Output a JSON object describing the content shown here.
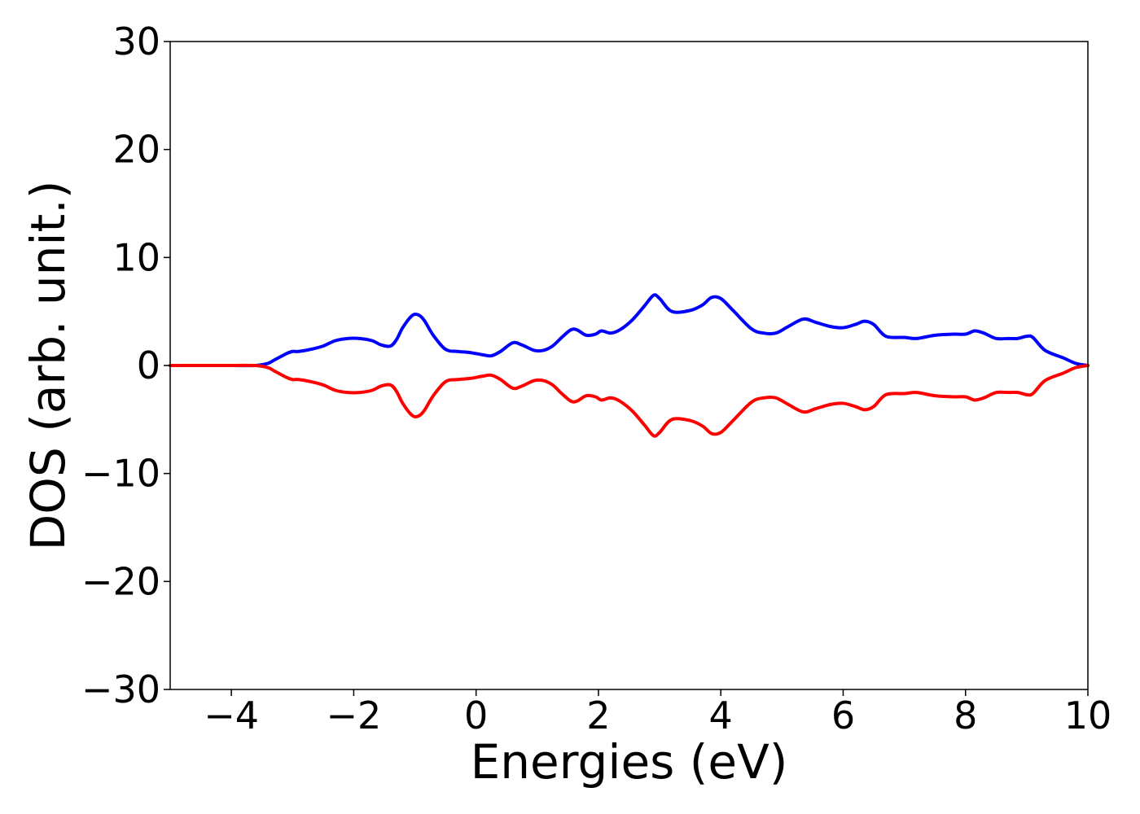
{
  "chart_data": {
    "type": "line",
    "title": "",
    "xlabel": "Energies (eV)",
    "ylabel": "DOS (arb. unit.)",
    "xlim": [
      -5,
      10
    ],
    "ylim": [
      -30,
      30
    ],
    "grid": false,
    "x_ticks": [
      {
        "value": -4,
        "label": "−4"
      },
      {
        "value": -2,
        "label": "−2"
      },
      {
        "value": 0,
        "label": "0"
      },
      {
        "value": 2,
        "label": "2"
      },
      {
        "value": 4,
        "label": "4"
      },
      {
        "value": 6,
        "label": "6"
      },
      {
        "value": 8,
        "label": "8"
      },
      {
        "value": 10,
        "label": "10"
      }
    ],
    "y_ticks": [
      {
        "value": -30,
        "label": "−30"
      },
      {
        "value": -20,
        "label": "−20"
      },
      {
        "value": -10,
        "label": "−10"
      },
      {
        "value": 0,
        "label": "0"
      },
      {
        "value": 10,
        "label": "10"
      },
      {
        "value": 20,
        "label": "20"
      },
      {
        "value": 30,
        "label": "30"
      }
    ],
    "series": [
      {
        "color": "#0000ff",
        "x": [
          -5.0,
          -4.5,
          -4.0,
          -3.6,
          -3.4,
          -3.3,
          -3.1,
          -3.0,
          -2.9,
          -2.7,
          -2.5,
          -2.3,
          -2.1,
          -1.9,
          -1.7,
          -1.55,
          -1.4,
          -1.3,
          -1.2,
          -1.05,
          -0.95,
          -0.85,
          -0.7,
          -0.5,
          -0.3,
          -0.1,
          0.1,
          0.25,
          0.4,
          0.6,
          0.75,
          0.95,
          1.1,
          1.25,
          1.4,
          1.55,
          1.65,
          1.8,
          1.95,
          2.05,
          2.2,
          2.35,
          2.55,
          2.75,
          2.9,
          3.0,
          3.2,
          3.5,
          3.7,
          3.85,
          4.0,
          4.2,
          4.5,
          4.7,
          4.9,
          5.1,
          5.35,
          5.55,
          5.8,
          6.0,
          6.2,
          6.35,
          6.5,
          6.7,
          7.0,
          7.2,
          7.5,
          7.8,
          8.0,
          8.15,
          8.3,
          8.5,
          8.7,
          8.85,
          9.0,
          9.1,
          9.3,
          9.6,
          9.8,
          10.0
        ],
        "y": [
          0,
          0,
          0,
          0,
          0.2,
          0.5,
          1.1,
          1.3,
          1.3,
          1.5,
          1.8,
          2.3,
          2.5,
          2.5,
          2.3,
          1.9,
          1.8,
          2.4,
          3.5,
          4.6,
          4.7,
          4.2,
          2.8,
          1.5,
          1.3,
          1.2,
          1.0,
          0.9,
          1.3,
          2.1,
          1.9,
          1.4,
          1.4,
          1.8,
          2.6,
          3.3,
          3.3,
          2.8,
          2.9,
          3.2,
          3.0,
          3.3,
          4.2,
          5.5,
          6.5,
          6.2,
          5.0,
          5.1,
          5.6,
          6.3,
          6.2,
          5.1,
          3.4,
          3.0,
          3.0,
          3.6,
          4.3,
          4.0,
          3.6,
          3.5,
          3.8,
          4.1,
          3.8,
          2.7,
          2.6,
          2.5,
          2.8,
          2.9,
          2.9,
          3.2,
          3.0,
          2.5,
          2.5,
          2.5,
          2.7,
          2.6,
          1.4,
          0.7,
          0.2,
          0
        ]
      },
      {
        "color": "#ff0000",
        "x": [
          -5.0,
          -4.5,
          -4.0,
          -3.6,
          -3.4,
          -3.3,
          -3.1,
          -3.0,
          -2.9,
          -2.7,
          -2.5,
          -2.3,
          -2.1,
          -1.9,
          -1.7,
          -1.55,
          -1.4,
          -1.3,
          -1.2,
          -1.05,
          -0.95,
          -0.85,
          -0.7,
          -0.5,
          -0.3,
          -0.1,
          0.1,
          0.25,
          0.4,
          0.6,
          0.75,
          0.95,
          1.1,
          1.25,
          1.4,
          1.55,
          1.65,
          1.8,
          1.95,
          2.05,
          2.2,
          2.35,
          2.55,
          2.75,
          2.9,
          3.0,
          3.2,
          3.5,
          3.7,
          3.85,
          4.0,
          4.2,
          4.5,
          4.7,
          4.9,
          5.1,
          5.35,
          5.55,
          5.8,
          6.0,
          6.2,
          6.35,
          6.5,
          6.7,
          7.0,
          7.2,
          7.5,
          7.8,
          8.0,
          8.15,
          8.3,
          8.5,
          8.7,
          8.85,
          9.0,
          9.1,
          9.3,
          9.6,
          9.8,
          10.0
        ],
        "y": [
          0,
          0,
          0,
          0,
          -0.2,
          -0.5,
          -1.1,
          -1.3,
          -1.3,
          -1.5,
          -1.8,
          -2.3,
          -2.5,
          -2.5,
          -2.3,
          -1.9,
          -1.8,
          -2.4,
          -3.5,
          -4.6,
          -4.7,
          -4.2,
          -2.8,
          -1.5,
          -1.3,
          -1.2,
          -1.0,
          -0.9,
          -1.3,
          -2.1,
          -1.9,
          -1.4,
          -1.4,
          -1.8,
          -2.6,
          -3.3,
          -3.3,
          -2.8,
          -2.9,
          -3.2,
          -3.0,
          -3.3,
          -4.2,
          -5.5,
          -6.5,
          -6.2,
          -5.0,
          -5.1,
          -5.6,
          -6.3,
          -6.2,
          -5.1,
          -3.4,
          -3.0,
          -3.0,
          -3.6,
          -4.3,
          -4.0,
          -3.6,
          -3.5,
          -3.8,
          -4.1,
          -3.8,
          -2.7,
          -2.6,
          -2.5,
          -2.8,
          -2.9,
          -2.9,
          -3.2,
          -3.0,
          -2.5,
          -2.5,
          -2.5,
          -2.7,
          -2.6,
          -1.4,
          -0.7,
          -0.2,
          0
        ]
      }
    ]
  }
}
